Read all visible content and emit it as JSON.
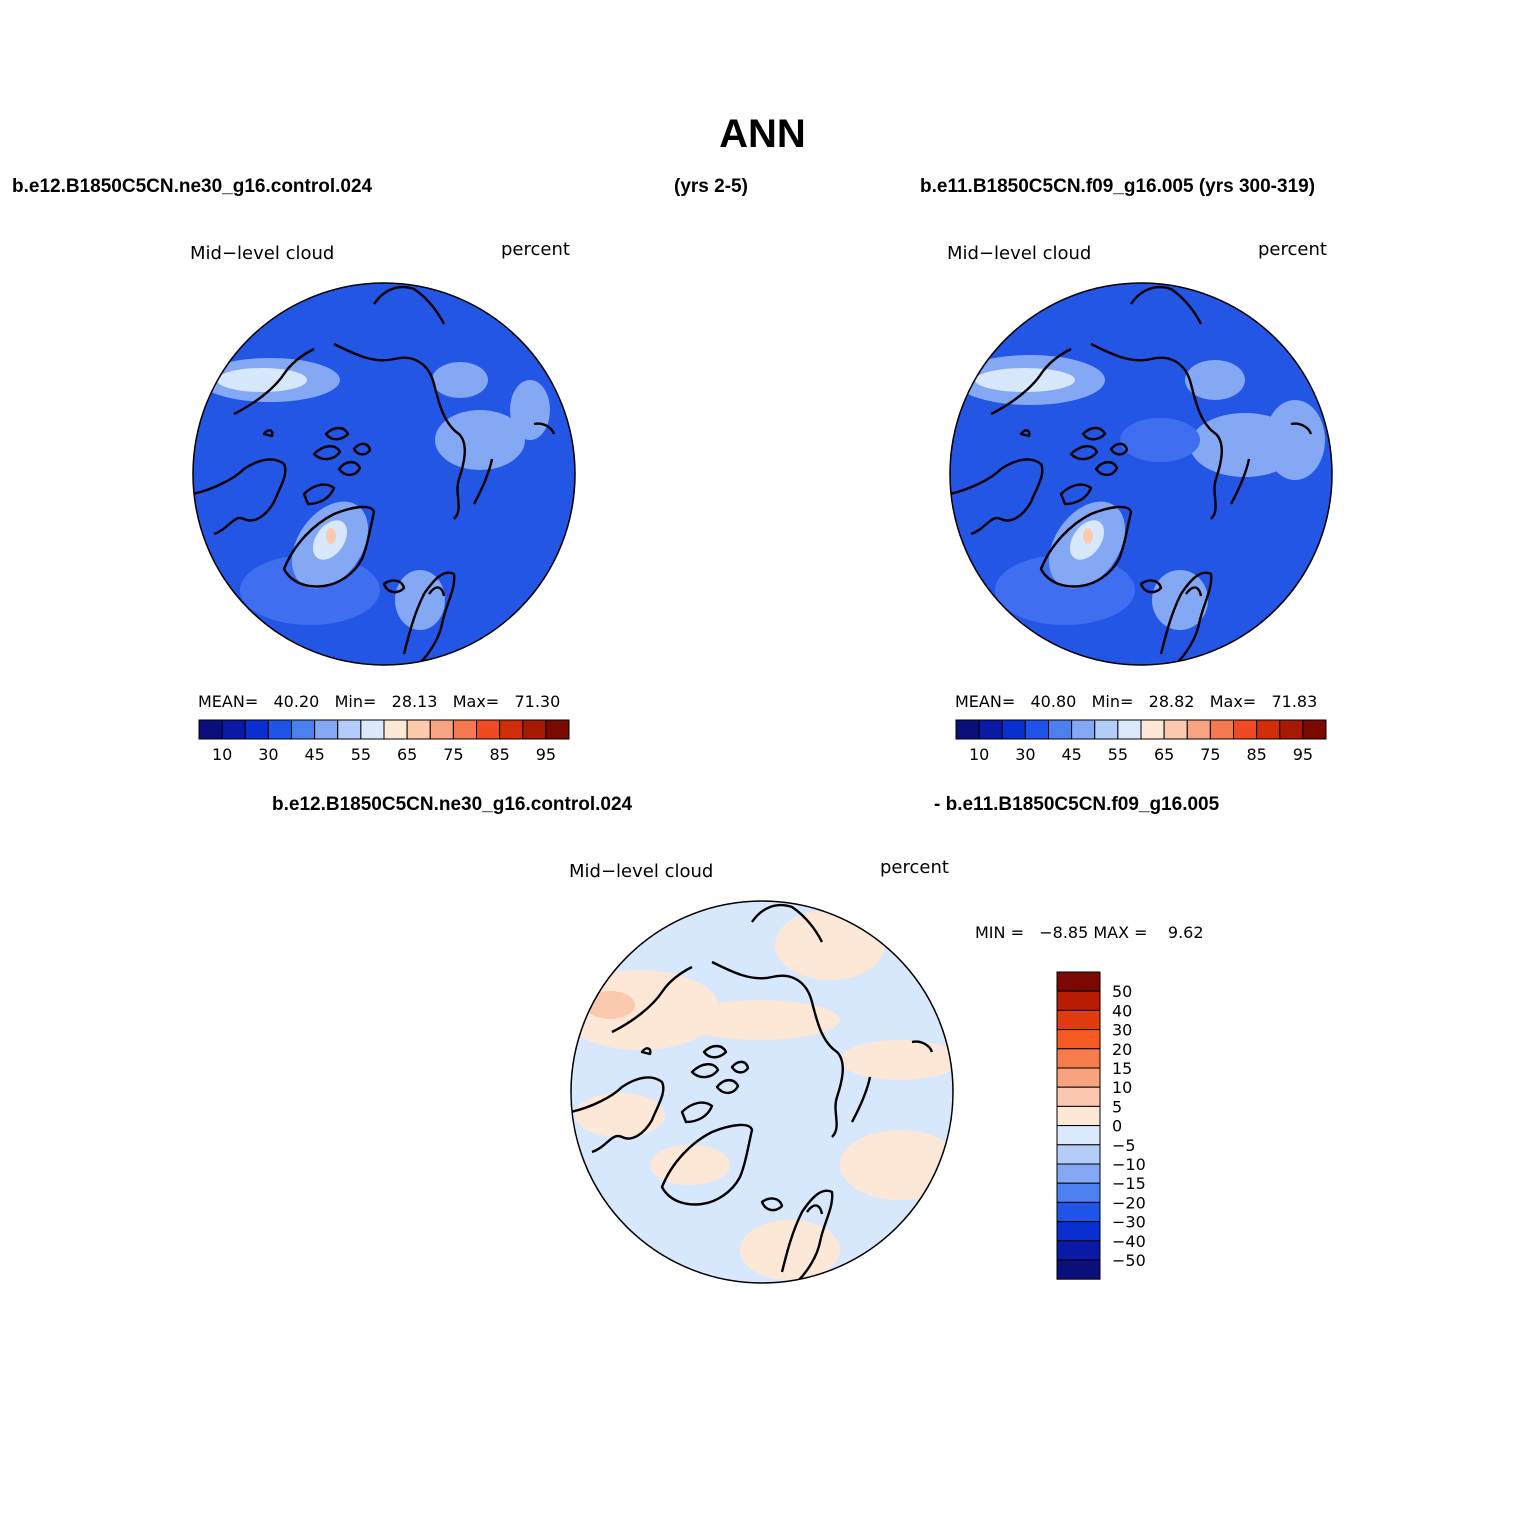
{
  "title": "ANN",
  "header": {
    "case1": "b.e12.B1850C5CN.ne30_g16.control.024",
    "years1": "(yrs 2-5)",
    "case2": "b.e11.B1850C5CN.f09_g16.005 (yrs 300-319)",
    "diff_case1": "b.e12.B1850C5CN.ne30_g16.control.024",
    "diff_case2": "- b.e11.B1850C5CN.f09_g16.005"
  },
  "panels": [
    {
      "variable": "Mid−level cloud",
      "units": "percent",
      "mean_label": "MEAN=",
      "mean": "40.20",
      "min_label": "Min=",
      "min": "28.13",
      "max_label": "Max=",
      "max": "71.30"
    },
    {
      "variable": "Mid−level cloud",
      "units": "percent",
      "mean_label": "MEAN=",
      "mean": "40.80",
      "min_label": "Min=",
      "min": "28.82",
      "max_label": "Max=",
      "max": "71.83"
    },
    {
      "variable": "Mid−level cloud",
      "units": "percent",
      "stats": "MIN =   −8.85 MAX =    9.62"
    }
  ],
  "colorbar_abs": {
    "labels": [
      "10",
      "30",
      "45",
      "55",
      "65",
      "75",
      "85",
      "95"
    ],
    "colors": [
      "#0a0f7a",
      "#0a1aa6",
      "#0a2fd0",
      "#1f54e8",
      "#4c7ff0",
      "#84a8f4",
      "#b4ccf8",
      "#dce9fc",
      "#fde8d8",
      "#fbc9ae",
      "#f7a482",
      "#f57a52",
      "#f04a22",
      "#d22d06",
      "#a61a02",
      "#7a0a00"
    ]
  },
  "colorbar_diff": {
    "labels": [
      "50",
      "40",
      "30",
      "20",
      "15",
      "10",
      "5",
      "0",
      "−5",
      "−10",
      "−15",
      "−20",
      "−30",
      "−40",
      "−50"
    ],
    "colors": [
      "#7a0a00",
      "#b81c02",
      "#e03a0e",
      "#f55a22",
      "#f77c4c",
      "#f9a37e",
      "#fbc7ae",
      "#fde8d8",
      "#dce9fc",
      "#b4ccf8",
      "#84a8f4",
      "#4c7ff0",
      "#1f54e8",
      "#0a2fd0",
      "#0a1aa6",
      "#0a0f7a"
    ]
  },
  "map_colors": {
    "base_blue": "#2456e6",
    "mid_blue": "#3f6ff0",
    "light_blue": "#84a8f4",
    "pale_blue": "#d8e8fc",
    "peach": "#fde8d8",
    "salmon": "#fbc9ae"
  }
}
